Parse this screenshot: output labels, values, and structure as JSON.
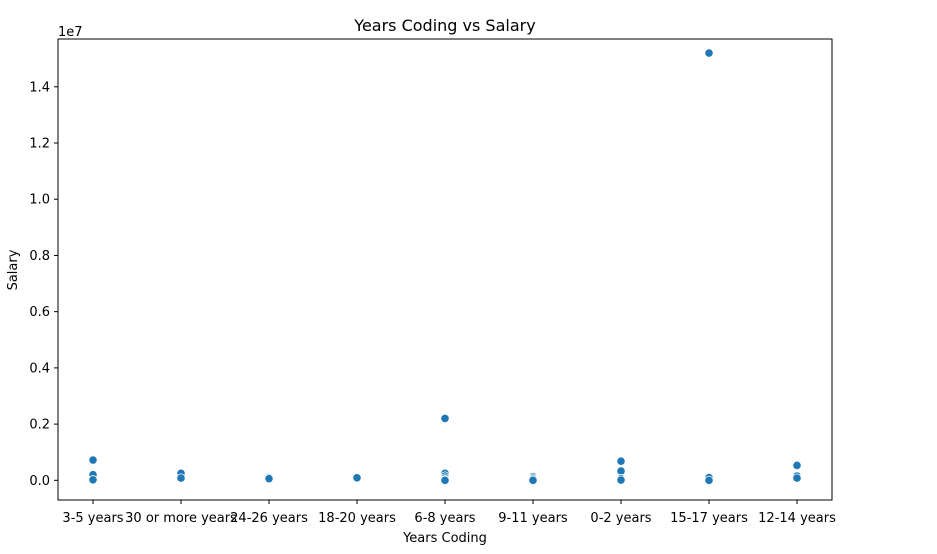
{
  "chart_data": {
    "type": "scatter",
    "title": "Years Coding vs Salary",
    "xlabel": "Years Coding",
    "ylabel": "Salary",
    "y_offset_label": "1e7",
    "y_scale_factor": 10000000,
    "ylim": [
      -700000,
      15700000
    ],
    "yticks": [
      0,
      2000000,
      4000000,
      6000000,
      8000000,
      10000000,
      12000000,
      14000000
    ],
    "ytick_labels": [
      "0.0",
      "0.2",
      "0.4",
      "0.6",
      "0.8",
      "1.0",
      "1.2",
      "1.4"
    ],
    "categories": [
      "3-5 years",
      "30 or more years",
      "24-26 years",
      "18-20 years",
      "6-8 years",
      "9-11 years",
      "0-2 years",
      "15-17 years",
      "12-14 years"
    ],
    "grid": false,
    "marker_color": "#1f77b4",
    "points": [
      {
        "x": "3-5 years",
        "y": 720000
      },
      {
        "x": "3-5 years",
        "y": 200000
      },
      {
        "x": "3-5 years",
        "y": 20000
      },
      {
        "x": "30 or more years",
        "y": 250000
      },
      {
        "x": "30 or more years",
        "y": 80000
      },
      {
        "x": "24-26 years",
        "y": 100000
      },
      {
        "x": "24-26 years",
        "y": 60000
      },
      {
        "x": "18-20 years",
        "y": 110000
      },
      {
        "x": "18-20 years",
        "y": 90000
      },
      {
        "x": "6-8 years",
        "y": 2200000
      },
      {
        "x": "6-8 years",
        "y": 250000
      },
      {
        "x": "6-8 years",
        "y": 150000
      },
      {
        "x": "6-8 years",
        "y": 80000
      },
      {
        "x": "6-8 years",
        "y": 20000
      },
      {
        "x": "6-8 years",
        "y": 0
      },
      {
        "x": "9-11 years",
        "y": 130000
      },
      {
        "x": "9-11 years",
        "y": 80000
      },
      {
        "x": "9-11 years",
        "y": 40000
      },
      {
        "x": "9-11 years",
        "y": 0
      },
      {
        "x": "0-2 years",
        "y": 680000
      },
      {
        "x": "0-2 years",
        "y": 330000
      },
      {
        "x": "0-2 years",
        "y": 60000
      },
      {
        "x": "0-2 years",
        "y": 10000
      },
      {
        "x": "15-17 years",
        "y": 15200000
      },
      {
        "x": "15-17 years",
        "y": 100000
      },
      {
        "x": "15-17 years",
        "y": 0
      },
      {
        "x": "12-14 years",
        "y": 560000
      },
      {
        "x": "12-14 years",
        "y": 530000
      },
      {
        "x": "12-14 years",
        "y": 150000
      },
      {
        "x": "12-14 years",
        "y": 80000
      }
    ]
  }
}
